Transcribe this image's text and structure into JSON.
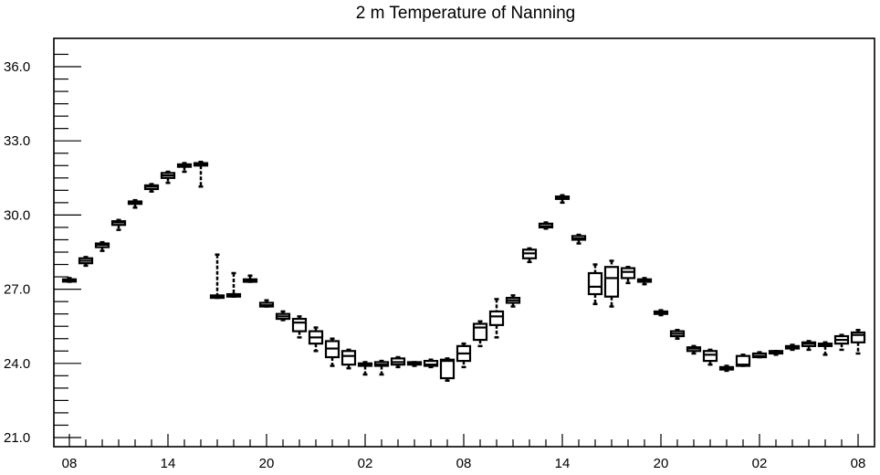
{
  "chart_data": {
    "type": "box",
    "title": "2 m Temperature of Nanning",
    "xlabel": "",
    "ylabel": "",
    "ylim": [
      20.5,
      37.2
    ],
    "yticks": [
      21.0,
      24.0,
      27.0,
      30.0,
      33.0,
      36.0
    ],
    "ytick_labels": [
      "21.0",
      "24.0",
      "27.0",
      "30.0",
      "33.0",
      "36.0"
    ],
    "x_hours_from_start": [
      0,
      6,
      12,
      18,
      24,
      30,
      36,
      42,
      48,
      54
    ],
    "xtick_labels": [
      "08",
      "14",
      "20",
      "02",
      "08",
      "14",
      "20",
      "02",
      "08"
    ],
    "x_tick_hours": [
      0,
      6,
      12,
      18,
      24,
      30,
      36,
      42,
      48
    ],
    "grid": false,
    "series": [
      {
        "boxes": [
          {
            "h": 0,
            "min": 27.3,
            "q1": 27.33,
            "med": 27.37,
            "q3": 27.4,
            "max": 27.45
          },
          {
            "h": 1,
            "min": 27.95,
            "q1": 28.05,
            "med": 28.15,
            "q3": 28.25,
            "max": 28.3
          },
          {
            "h": 2,
            "min": 28.55,
            "q1": 28.7,
            "med": 28.8,
            "q3": 28.85,
            "max": 28.9
          },
          {
            "h": 3,
            "min": 29.4,
            "q1": 29.6,
            "med": 29.7,
            "q3": 29.75,
            "max": 29.8
          },
          {
            "h": 4,
            "min": 30.3,
            "q1": 30.45,
            "med": 30.5,
            "q3": 30.55,
            "max": 30.6
          },
          {
            "h": 5,
            "min": 30.95,
            "q1": 31.05,
            "med": 31.15,
            "q3": 31.2,
            "max": 31.25
          },
          {
            "h": 6,
            "min": 31.3,
            "q1": 31.5,
            "med": 31.6,
            "q3": 31.7,
            "max": 31.75
          },
          {
            "h": 7,
            "min": 31.75,
            "q1": 31.95,
            "med": 32.0,
            "q3": 32.05,
            "max": 32.1
          },
          {
            "h": 8,
            "min": 31.15,
            "q1": 32.0,
            "med": 32.05,
            "q3": 32.1,
            "max": 32.15
          },
          {
            "h": 9,
            "min": 26.65,
            "q1": 26.65,
            "med": 26.7,
            "q3": 26.75,
            "max": 28.4
          },
          {
            "h": 10,
            "min": 26.7,
            "q1": 26.7,
            "med": 26.75,
            "q3": 26.8,
            "max": 27.65
          },
          {
            "h": 11,
            "min": 27.3,
            "q1": 27.3,
            "med": 27.35,
            "q3": 27.4,
            "max": 27.55
          },
          {
            "h": 12,
            "min": 26.3,
            "q1": 26.3,
            "med": 26.35,
            "q3": 26.45,
            "max": 26.55
          },
          {
            "h": 13,
            "min": 25.75,
            "q1": 25.8,
            "med": 25.9,
            "q3": 26.0,
            "max": 26.1
          },
          {
            "h": 14,
            "min": 25.05,
            "q1": 25.3,
            "med": 25.65,
            "q3": 25.8,
            "max": 25.9
          },
          {
            "h": 15,
            "min": 24.5,
            "q1": 24.8,
            "med": 25.05,
            "q3": 25.3,
            "max": 25.45
          },
          {
            "h": 16,
            "min": 23.9,
            "q1": 24.25,
            "med": 24.6,
            "q3": 24.9,
            "max": 25.0
          },
          {
            "h": 17,
            "min": 23.8,
            "q1": 23.95,
            "med": 24.3,
            "q3": 24.5,
            "max": 24.55
          },
          {
            "h": 18,
            "min": 23.55,
            "q1": 23.9,
            "med": 23.95,
            "q3": 24.0,
            "max": 24.05
          },
          {
            "h": 19,
            "min": 23.55,
            "q1": 23.9,
            "med": 23.95,
            "q3": 24.05,
            "max": 24.1
          },
          {
            "h": 20,
            "min": 23.85,
            "q1": 23.95,
            "med": 24.05,
            "q3": 24.2,
            "max": 24.25
          },
          {
            "h": 21,
            "min": 23.9,
            "q1": 23.95,
            "med": 24.0,
            "q3": 24.05,
            "max": 24.05
          },
          {
            "h": 22,
            "min": 23.85,
            "q1": 23.9,
            "med": 23.95,
            "q3": 24.1,
            "max": 24.15
          },
          {
            "h": 23,
            "min": 23.3,
            "q1": 23.4,
            "med": 24.1,
            "q3": 24.15,
            "max": 24.2
          },
          {
            "h": 24,
            "min": 23.85,
            "q1": 24.1,
            "med": 24.4,
            "q3": 24.7,
            "max": 24.8
          },
          {
            "h": 25,
            "min": 24.7,
            "q1": 24.95,
            "med": 25.45,
            "q3": 25.6,
            "max": 25.7
          },
          {
            "h": 26,
            "min": 25.05,
            "q1": 25.55,
            "med": 25.9,
            "q3": 26.1,
            "max": 26.6
          },
          {
            "h": 27,
            "min": 26.3,
            "q1": 26.45,
            "med": 26.55,
            "q3": 26.65,
            "max": 26.75
          },
          {
            "h": 28,
            "min": 28.1,
            "q1": 28.25,
            "med": 28.45,
            "q3": 28.6,
            "max": 28.65
          },
          {
            "h": 29,
            "min": 29.45,
            "q1": 29.5,
            "med": 29.55,
            "q3": 29.65,
            "max": 29.7
          },
          {
            "h": 30,
            "min": 30.5,
            "q1": 30.65,
            "med": 30.7,
            "q3": 30.75,
            "max": 30.8
          },
          {
            "h": 31,
            "min": 28.85,
            "q1": 29.0,
            "med": 29.05,
            "q3": 29.15,
            "max": 29.2
          },
          {
            "h": 32,
            "min": 26.4,
            "q1": 26.8,
            "med": 27.1,
            "q3": 27.65,
            "max": 28.0
          },
          {
            "h": 33,
            "min": 26.3,
            "q1": 26.7,
            "med": 27.45,
            "q3": 27.9,
            "max": 28.15
          },
          {
            "h": 34,
            "min": 27.25,
            "q1": 27.45,
            "med": 27.7,
            "q3": 27.85,
            "max": 27.9
          },
          {
            "h": 35,
            "min": 27.2,
            "q1": 27.3,
            "med": 27.35,
            "q3": 27.4,
            "max": 27.45
          },
          {
            "h": 36,
            "min": 25.95,
            "q1": 26.0,
            "med": 26.05,
            "q3": 26.1,
            "max": 26.15
          },
          {
            "h": 37,
            "min": 25.0,
            "q1": 25.1,
            "med": 25.2,
            "q3": 25.3,
            "max": 25.35
          },
          {
            "h": 38,
            "min": 24.4,
            "q1": 24.5,
            "med": 24.6,
            "q3": 24.65,
            "max": 24.7
          },
          {
            "h": 39,
            "min": 23.95,
            "q1": 24.1,
            "med": 24.35,
            "q3": 24.5,
            "max": 24.55
          },
          {
            "h": 40,
            "min": 23.7,
            "q1": 23.75,
            "med": 23.8,
            "q3": 23.85,
            "max": 23.9
          },
          {
            "h": 41,
            "min": 23.9,
            "q1": 23.9,
            "med": 23.95,
            "q3": 24.3,
            "max": 24.35
          },
          {
            "h": 42,
            "min": 24.25,
            "q1": 24.25,
            "med": 24.3,
            "q3": 24.4,
            "max": 24.45
          },
          {
            "h": 43,
            "min": 24.35,
            "q1": 24.4,
            "med": 24.45,
            "q3": 24.5,
            "max": 24.5
          },
          {
            "h": 44,
            "min": 24.55,
            "q1": 24.6,
            "med": 24.65,
            "q3": 24.7,
            "max": 24.75
          },
          {
            "h": 45,
            "min": 24.55,
            "q1": 24.7,
            "med": 24.8,
            "q3": 24.85,
            "max": 24.9
          },
          {
            "h": 46,
            "min": 24.35,
            "q1": 24.7,
            "med": 24.75,
            "q3": 24.8,
            "max": 24.85
          },
          {
            "h": 47,
            "min": 24.55,
            "q1": 24.8,
            "med": 24.95,
            "q3": 25.1,
            "max": 25.15
          },
          {
            "h": 48,
            "min": 24.4,
            "q1": 24.85,
            "med": 25.15,
            "q3": 25.25,
            "max": 25.35
          }
        ]
      }
    ]
  }
}
